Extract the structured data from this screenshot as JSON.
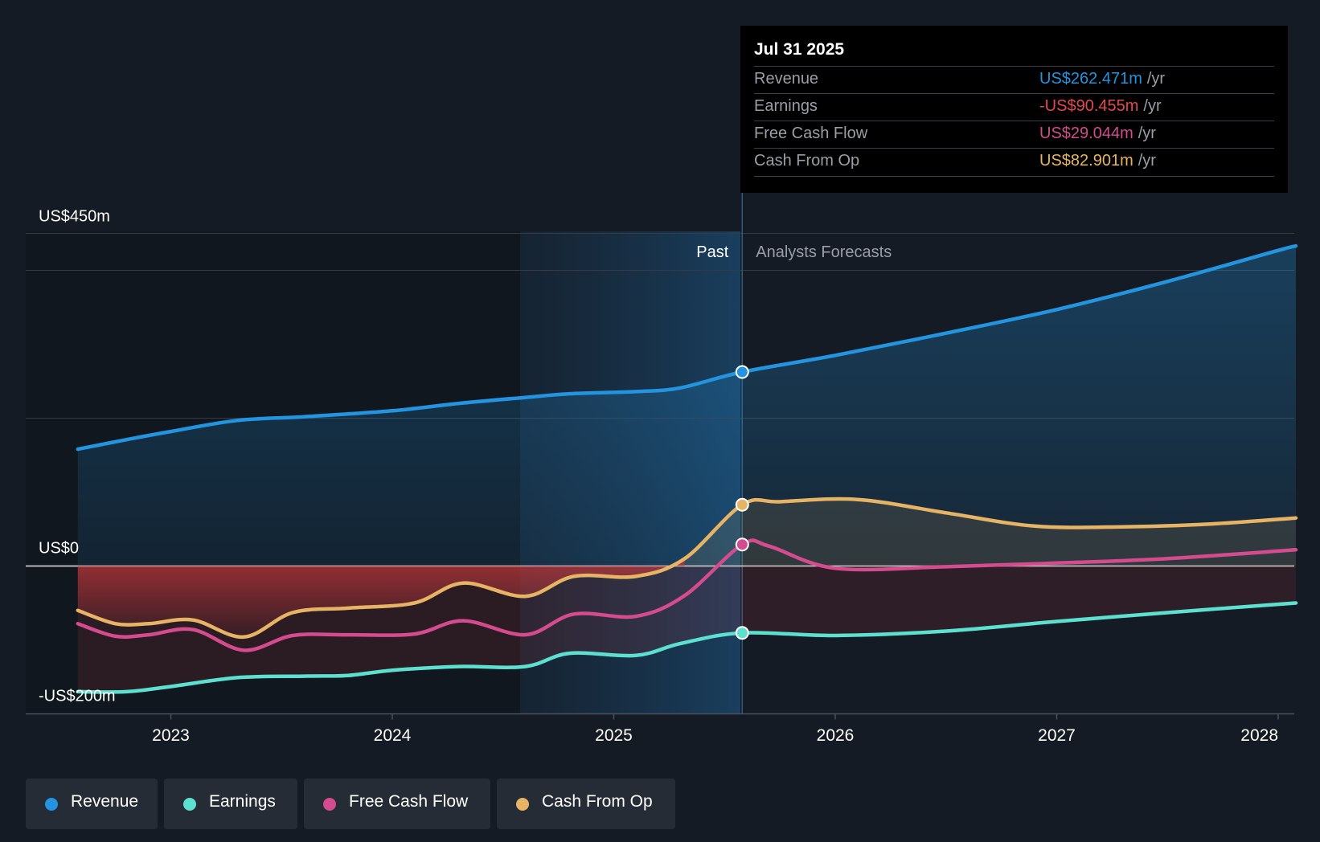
{
  "chart_data": {
    "type": "area",
    "y_axis": {
      "labels": [
        "US$450m",
        "US$0",
        "-US$200m"
      ],
      "ylim": [
        -200,
        450
      ]
    },
    "x_axis": {
      "ticks": [
        "2023",
        "2024",
        "2025",
        "2026",
        "2027",
        "2028"
      ]
    },
    "regions": {
      "past_label": "Past",
      "forecast_label": "Analysts Forecasts",
      "divider_x": 2025.58
    },
    "series": [
      {
        "name": "Revenue",
        "color": "#2394df",
        "points": [
          [
            2022.58,
            158
          ],
          [
            2022.8,
            171
          ],
          [
            2023.0,
            182
          ],
          [
            2023.3,
            197
          ],
          [
            2023.6,
            202
          ],
          [
            2024.0,
            210
          ],
          [
            2024.3,
            220
          ],
          [
            2024.6,
            228
          ],
          [
            2024.8,
            233
          ],
          [
            2025.1,
            236
          ],
          [
            2025.3,
            241
          ],
          [
            2025.58,
            262.471
          ],
          [
            2026.0,
            285
          ],
          [
            2026.5,
            315
          ],
          [
            2027.0,
            347
          ],
          [
            2027.5,
            385
          ],
          [
            2028.0,
            427
          ],
          [
            2028.08,
            433
          ]
        ]
      },
      {
        "name": "Earnings",
        "color": "#5ce1d1",
        "points": [
          [
            2022.58,
            -170
          ],
          [
            2022.8,
            -170
          ],
          [
            2023.0,
            -163
          ],
          [
            2023.3,
            -151
          ],
          [
            2023.6,
            -149
          ],
          [
            2023.8,
            -148
          ],
          [
            2024.0,
            -141
          ],
          [
            2024.3,
            -136
          ],
          [
            2024.6,
            -136
          ],
          [
            2024.8,
            -118
          ],
          [
            2025.1,
            -121
          ],
          [
            2025.3,
            -105
          ],
          [
            2025.58,
            -90.455
          ],
          [
            2026.0,
            -94
          ],
          [
            2026.5,
            -88
          ],
          [
            2027.0,
            -75
          ],
          [
            2027.5,
            -63
          ],
          [
            2028.08,
            -50
          ]
        ]
      },
      {
        "name": "Free Cash Flow",
        "color": "#d44b8e",
        "points": [
          [
            2022.58,
            -78
          ],
          [
            2022.75,
            -95
          ],
          [
            2022.9,
            -93
          ],
          [
            2023.1,
            -86
          ],
          [
            2023.33,
            -114
          ],
          [
            2023.55,
            -94
          ],
          [
            2023.8,
            -93
          ],
          [
            2024.1,
            -92
          ],
          [
            2024.32,
            -74
          ],
          [
            2024.6,
            -93
          ],
          [
            2024.82,
            -65
          ],
          [
            2025.1,
            -68
          ],
          [
            2025.32,
            -40
          ],
          [
            2025.58,
            29.044
          ],
          [
            2025.7,
            27
          ],
          [
            2026.0,
            -3
          ],
          [
            2026.5,
            -1
          ],
          [
            2027.0,
            4
          ],
          [
            2027.5,
            10
          ],
          [
            2028.08,
            22
          ]
        ]
      },
      {
        "name": "Cash From Op",
        "color": "#e7b364",
        "points": [
          [
            2022.58,
            -60
          ],
          [
            2022.75,
            -78
          ],
          [
            2022.9,
            -78
          ],
          [
            2023.1,
            -73
          ],
          [
            2023.33,
            -96
          ],
          [
            2023.55,
            -63
          ],
          [
            2023.8,
            -57
          ],
          [
            2024.1,
            -50
          ],
          [
            2024.32,
            -23
          ],
          [
            2024.6,
            -41
          ],
          [
            2024.82,
            -14
          ],
          [
            2025.1,
            -14
          ],
          [
            2025.32,
            10
          ],
          [
            2025.58,
            82.901
          ],
          [
            2025.75,
            87
          ],
          [
            2026.1,
            90
          ],
          [
            2026.5,
            72
          ],
          [
            2026.9,
            54
          ],
          [
            2027.3,
            53
          ],
          [
            2027.7,
            57
          ],
          [
            2028.08,
            65
          ]
        ]
      }
    ]
  },
  "tooltip": {
    "date": "Jul 31 2025",
    "rows": [
      {
        "label": "Revenue",
        "value": "US$262.471m",
        "unit": "/yr",
        "color": "#2394df"
      },
      {
        "label": "Earnings",
        "value": "-US$90.455m",
        "unit": "/yr",
        "color": "#e5484d"
      },
      {
        "label": "Free Cash Flow",
        "value": "US$29.044m",
        "unit": "/yr",
        "color": "#d44b8e"
      },
      {
        "label": "Cash From Op",
        "value": "US$82.901m",
        "unit": "/yr",
        "color": "#e7b364"
      }
    ]
  },
  "legend": [
    {
      "label": "Revenue",
      "color": "#2394df"
    },
    {
      "label": "Earnings",
      "color": "#5ce1d1"
    },
    {
      "label": "Free Cash Flow",
      "color": "#d44b8e"
    },
    {
      "label": "Cash From Op",
      "color": "#e7b364"
    }
  ]
}
